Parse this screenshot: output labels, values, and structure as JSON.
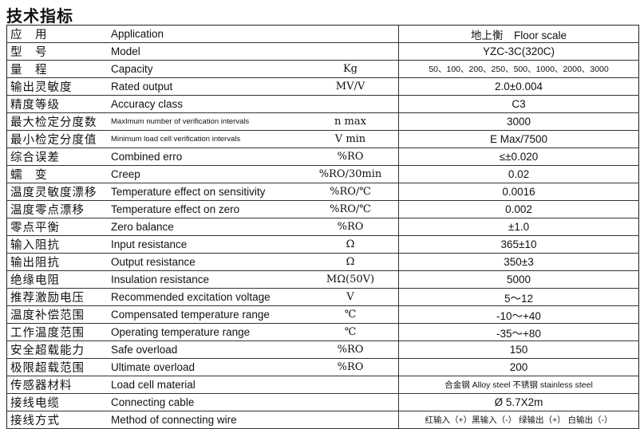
{
  "title": "技术指标",
  "rows": [
    {
      "cn": "应　用",
      "en": "Application",
      "unit": "",
      "value": "地上衡　Floor scale"
    },
    {
      "cn": "型　号",
      "en": "Model",
      "unit": "",
      "value": "YZC-3C(320C)"
    },
    {
      "cn": "量　程",
      "en": "Capacity",
      "unit": "Kg",
      "value": "50、100、200、250、500、1000、2000、3000"
    },
    {
      "cn": "输出灵敏度",
      "en": "Rated output",
      "unit": "MV/V",
      "value": "2.0±0.004"
    },
    {
      "cn": "精度等级",
      "en": "Accuracy class",
      "unit": "",
      "value": "C3"
    },
    {
      "cn": "最大检定分度数",
      "en": "MaxImum number of verification intervals",
      "unit": "n max",
      "value": "3000"
    },
    {
      "cn": "最小检定分度值",
      "en": "Minimum load cell verification intervals",
      "unit": "V min",
      "value": "E Max/7500"
    },
    {
      "cn": "综合误差",
      "en": "Combined erro",
      "unit": "%RO",
      "value": "≤±0.020"
    },
    {
      "cn": "蠕　变",
      "en": "Creep",
      "unit": "%RO/30min",
      "value": "0.02"
    },
    {
      "cn": "温度灵敏度漂移",
      "en": "Temperature effect on sensitivity",
      "unit": "%RO/℃",
      "value": "0.0016"
    },
    {
      "cn": "温度零点漂移",
      "en": "Temperature effect on zero",
      "unit": "%RO/℃",
      "value": "0.002"
    },
    {
      "cn": "零点平衡",
      "en": "Zero balance",
      "unit": "%RO",
      "value": "±1.0"
    },
    {
      "cn": "输入阻抗",
      "en": "Input resistance",
      "unit": "Ω",
      "value": "365±10"
    },
    {
      "cn": "输出阻抗",
      "en": "Output resistance",
      "unit": "Ω",
      "value": "350±3"
    },
    {
      "cn": "绝缘电阻",
      "en": "Insulation resistance",
      "unit": "MΩ(50V)",
      "value": "5000"
    },
    {
      "cn": "推荐激励电压",
      "en": "Recommended excitation voltage",
      "unit": "V",
      "value": "5～12"
    },
    {
      "cn": "温度补偿范围",
      "en": "Compensated temperature range",
      "unit": "℃",
      "value": "-10～+40"
    },
    {
      "cn": "工作温度范围",
      "en": "Operating temperature range",
      "unit": "℃",
      "value": "-35～+80"
    },
    {
      "cn": "安全超载能力",
      "en": "Safe overload",
      "unit": "%RO",
      "value": "150"
    },
    {
      "cn": "极限超载范围",
      "en": "Ultimate overload",
      "unit": "%RO",
      "value": "200"
    },
    {
      "cn": "传感器材料",
      "en": "Load cell material",
      "unit": "",
      "value": "合金钢 Alloy steel  不锈钢 stainless steel"
    },
    {
      "cn": "接线电缆",
      "en": "Connecting cable",
      "unit": "",
      "value": "Ø 5.7X2m"
    },
    {
      "cn": "接线方式",
      "en": "Method of connecting wire",
      "unit": "",
      "value": "红输入（+）黑输入（-） 绿输出（+） 白输出（-）"
    }
  ]
}
